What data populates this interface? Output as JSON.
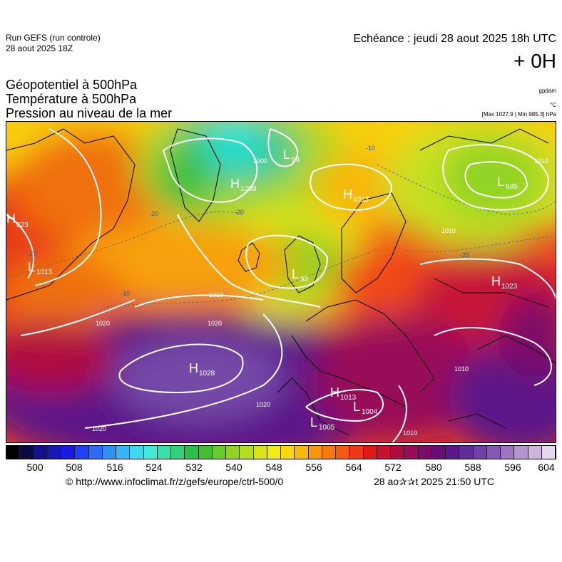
{
  "header": {
    "run_label": "Run GEFS (run controle)",
    "run_date": "28 aout 2025 18Z",
    "echeance": "Echéance : jeudi 28 aout 2025 18h UTC",
    "lead_time": "+ 0H"
  },
  "parameters": {
    "line1": "Géopotentiel à 500hPa",
    "line2": "Température à 500hPa",
    "line3": "Pression au niveau de la mer",
    "unit_geopotential": "gpdam",
    "unit_temperature": "°C",
    "min_max": "[Max 1027.9 | Min 985.3] hPa"
  },
  "pressure_centers": [
    {
      "type": "H",
      "value": "023"
    },
    {
      "type": "L",
      "value": "1013"
    },
    {
      "type": "H",
      "value": "1009"
    },
    {
      "type": "L",
      "value": "99"
    },
    {
      "type": "H",
      "value": "1013"
    },
    {
      "type": "L",
      "value": "985"
    },
    {
      "type": "L",
      "value": "98"
    },
    {
      "type": "H",
      "value": "1023"
    },
    {
      "type": "H",
      "value": "1028"
    },
    {
      "type": "H",
      "value": "1013"
    },
    {
      "type": "L",
      "value": "1004"
    },
    {
      "type": "L",
      "value": "1005"
    }
  ],
  "isobar_labels": [
    "1000",
    "1010",
    "1020",
    "1020",
    "1020",
    "1020",
    "1010",
    "1010",
    "1010",
    "1010"
  ],
  "temperature_labels": [
    "-20",
    "-20",
    "-10",
    "-20",
    "-20",
    "-10"
  ],
  "colorbar": {
    "colors": [
      "#000000",
      "#0a0a40",
      "#12128a",
      "#1818b8",
      "#1a1ae6",
      "#2040f8",
      "#2a6cf8",
      "#3090f8",
      "#38b4f8",
      "#40d8f0",
      "#40ecd8",
      "#38e0a8",
      "#30d078",
      "#28c048",
      "#40c030",
      "#68cc28",
      "#90d420",
      "#b4dc20",
      "#d8e418",
      "#f4ec10",
      "#f8d808",
      "#f8b808",
      "#f89808",
      "#f87808",
      "#f85810",
      "#f03818",
      "#e01818",
      "#c8102c",
      "#b00c40",
      "#980c58",
      "#7c0c68",
      "#680c78",
      "#5c1888",
      "#602c98",
      "#7040a8",
      "#8458b4",
      "#9c74c0",
      "#b494cc",
      "#ccb4dc",
      "#e4d8ec"
    ],
    "tick_labels": [
      "500",
      "508",
      "516",
      "524",
      "532",
      "540",
      "548",
      "556",
      "564",
      "572",
      "580",
      "588",
      "596",
      "604"
    ]
  },
  "footer": {
    "source": "© http://www.infoclimat.fr/z/gefs/europe/ctrl-500/0",
    "stamp": "28 ao✰✰t 2025 21:50 UTC"
  }
}
